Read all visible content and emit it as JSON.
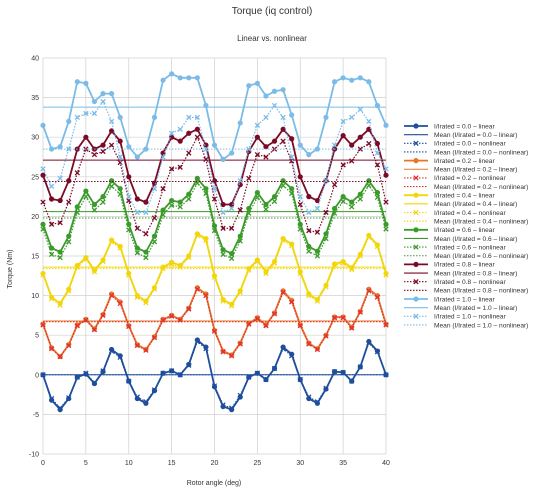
{
  "chart_data": {
    "type": "line",
    "title": "Torque (iq control)",
    "subtitle": "Linear vs. nonlinear",
    "xlabel": "Rotor angle (deg)",
    "ylabel": "Torque (Nm)",
    "xlim": [
      0,
      40
    ],
    "ylim": [
      -10,
      40
    ],
    "xticks": [
      0,
      5,
      10,
      15,
      20,
      25,
      30,
      35,
      40
    ],
    "yticks": [
      -10,
      -5,
      0,
      5,
      10,
      15,
      20,
      25,
      30,
      35,
      40
    ],
    "grid": true,
    "legend_position": "right",
    "x": [
      0,
      1,
      2,
      3,
      4,
      5,
      6,
      7,
      8,
      9,
      10,
      11,
      12,
      13,
      14,
      15,
      16,
      17,
      18,
      19,
      20,
      21,
      22,
      23,
      24,
      25,
      26,
      27,
      28,
      29,
      30,
      31,
      32,
      33,
      34,
      35,
      36,
      37,
      38,
      39,
      40
    ],
    "series": [
      {
        "name": "I/Irated = 0.0 – linear",
        "color": "#1f4e9c",
        "style": "solid",
        "marker": "circle",
        "values": [
          0.0,
          -3.2,
          -4.4,
          -3.0,
          -0.3,
          0.1,
          -1.1,
          0.4,
          3.2,
          2.4,
          -0.8,
          -3.0,
          -3.6,
          -2.0,
          0.2,
          0.5,
          0.0,
          1.3,
          4.4,
          3.5,
          -1.5,
          -4.0,
          -4.4,
          -2.8,
          -0.3,
          0.2,
          -0.6,
          0.8,
          3.5,
          2.6,
          -0.6,
          -3.0,
          -3.6,
          -1.8,
          0.4,
          0.3,
          -0.8,
          1.0,
          4.2,
          3.0,
          0.0
        ]
      },
      {
        "name": "Mean (I/Irated = 0.0 – linear)",
        "color": "#1f4e9c",
        "style": "mean",
        "value": 0.0
      },
      {
        "name": "I/Irated = 0.0 – nonlinear",
        "color": "#1f4e9c",
        "style": "dotted",
        "marker": "x",
        "values": [
          0.0,
          -3.0,
          -4.2,
          -2.9,
          -0.3,
          0.2,
          -1.0,
          0.5,
          3.0,
          2.2,
          -0.8,
          -2.8,
          -3.4,
          -1.9,
          0.2,
          0.5,
          0.0,
          1.2,
          4.2,
          3.3,
          -1.4,
          -3.8,
          -4.2,
          -2.6,
          -0.3,
          0.2,
          -0.6,
          0.8,
          3.3,
          2.4,
          -0.6,
          -2.8,
          -3.4,
          -1.7,
          0.4,
          0.3,
          -0.8,
          1.0,
          4.0,
          2.9,
          0.0
        ]
      },
      {
        "name": "Mean (I/Irated = 0.0 – nonlinear)",
        "color": "#1f4e9c",
        "style": "mean-dotted",
        "value": 0.0
      },
      {
        "name": "I/Irated = 0.2 – linear",
        "color": "#e8752a",
        "style": "solid",
        "marker": "circle",
        "values": [
          6.4,
          3.4,
          2.3,
          3.8,
          6.3,
          7.0,
          5.8,
          7.6,
          10.2,
          9.2,
          6.2,
          3.8,
          3.2,
          4.8,
          7.0,
          7.5,
          7.0,
          8.4,
          11.0,
          10.2,
          5.6,
          3.0,
          2.5,
          4.0,
          6.5,
          7.2,
          6.3,
          7.8,
          10.6,
          9.4,
          6.3,
          4.0,
          3.3,
          5.0,
          7.3,
          7.3,
          6.0,
          8.0,
          10.8,
          10.0,
          6.4
        ]
      },
      {
        "name": "Mean (I/Irated = 0.2 – linear)",
        "color": "#e8752a",
        "style": "mean",
        "value": 6.8
      },
      {
        "name": "I/Irated = 0.2 – nonlinear",
        "color": "#e03030",
        "style": "dotted",
        "marker": "x",
        "values": [
          6.3,
          3.3,
          2.3,
          3.7,
          6.2,
          6.9,
          5.7,
          7.5,
          10.0,
          9.0,
          6.1,
          3.7,
          3.1,
          4.7,
          6.9,
          7.4,
          6.9,
          8.3,
          10.8,
          10.0,
          5.5,
          2.9,
          2.4,
          3.9,
          6.4,
          7.1,
          6.2,
          7.7,
          10.4,
          9.2,
          6.2,
          3.9,
          3.2,
          4.9,
          7.2,
          7.2,
          5.9,
          7.9,
          10.6,
          9.8,
          6.3
        ]
      },
      {
        "name": "Mean (I/Irated = 0.2 – nonlinear)",
        "color": "#e03030",
        "style": "mean-dotted",
        "value": 6.7
      },
      {
        "name": "I/Irated = 0.4 – linear",
        "color": "#f2d60c",
        "style": "solid",
        "marker": "circle",
        "values": [
          12.8,
          9.8,
          9.0,
          10.8,
          13.8,
          14.8,
          13.2,
          14.5,
          17.0,
          16.2,
          12.8,
          10.0,
          9.3,
          11.0,
          13.6,
          14.2,
          13.8,
          15.0,
          17.8,
          17.2,
          12.5,
          9.5,
          8.9,
          10.6,
          13.4,
          14.5,
          13.0,
          14.3,
          17.2,
          16.5,
          13.0,
          10.2,
          9.5,
          11.3,
          14.0,
          14.3,
          13.5,
          15.2,
          17.6,
          16.4,
          12.8
        ]
      },
      {
        "name": "Mean (I/Irated = 0.4 – linear)",
        "color": "#f2d60c",
        "style": "mean",
        "value": 13.6
      },
      {
        "name": "I/Irated = 0.4 – nonlinear",
        "color": "#f2d60c",
        "style": "dotted",
        "marker": "x",
        "values": [
          12.6,
          9.6,
          8.8,
          10.6,
          13.6,
          14.6,
          13.0,
          14.3,
          16.8,
          16.0,
          12.6,
          9.8,
          9.1,
          10.8,
          13.4,
          14.0,
          13.6,
          14.8,
          17.6,
          17.0,
          12.3,
          9.3,
          8.7,
          10.4,
          13.2,
          14.3,
          12.8,
          14.1,
          17.0,
          16.3,
          12.8,
          10.0,
          9.3,
          11.1,
          13.8,
          14.1,
          13.3,
          15.0,
          17.4,
          16.2,
          12.6
        ]
      },
      {
        "name": "Mean (I/Irated = 0.4 – nonlinear)",
        "color": "#f2d60c",
        "style": "mean-dotted",
        "value": 13.4
      },
      {
        "name": "I/Irated = 0.6 – linear",
        "color": "#3a9a2a",
        "style": "solid",
        "marker": "circle",
        "values": [
          19.0,
          16.0,
          15.5,
          17.5,
          21.2,
          23.2,
          21.5,
          22.5,
          24.5,
          23.5,
          19.0,
          16.0,
          15.5,
          17.5,
          20.8,
          22.0,
          21.8,
          22.8,
          24.8,
          23.5,
          18.8,
          15.8,
          15.3,
          17.5,
          21.0,
          23.0,
          21.5,
          22.5,
          24.5,
          23.5,
          19.0,
          16.2,
          15.6,
          17.8,
          21.0,
          22.5,
          21.8,
          22.8,
          24.5,
          23.0,
          19.0
        ]
      },
      {
        "name": "Mean (I/Irated = 0.6 – linear)",
        "color": "#3a9a2a",
        "style": "mean",
        "value": 20.6
      },
      {
        "name": "I/Irated = 0.6 – nonlinear",
        "color": "#3a9a2a",
        "style": "dotted",
        "marker": "x",
        "values": [
          18.4,
          15.2,
          14.8,
          16.8,
          20.5,
          22.5,
          20.8,
          21.8,
          23.8,
          22.8,
          18.3,
          15.4,
          14.8,
          16.8,
          20.2,
          21.4,
          21.2,
          22.2,
          24.2,
          22.9,
          18.2,
          15.2,
          14.7,
          16.9,
          20.4,
          22.4,
          20.9,
          21.9,
          23.9,
          22.9,
          18.4,
          15.6,
          15.0,
          17.2,
          20.4,
          21.9,
          21.2,
          22.2,
          23.9,
          22.4,
          18.4
        ]
      },
      {
        "name": "Mean (I/Irated = 0.6 – nonlinear)",
        "color": "#3a9a2a",
        "style": "mean-dotted",
        "value": 19.8
      },
      {
        "name": "I/Irated = 0.8 – linear",
        "color": "#7a0a26",
        "style": "solid",
        "marker": "circle",
        "values": [
          25.2,
          22.2,
          22.0,
          24.5,
          28.5,
          30.0,
          28.5,
          29.0,
          30.8,
          29.5,
          25.0,
          22.2,
          21.8,
          24.2,
          28.0,
          30.0,
          29.5,
          30.5,
          31.0,
          29.0,
          24.5,
          21.5,
          21.5,
          24.0,
          28.2,
          30.0,
          28.8,
          29.5,
          31.0,
          29.8,
          25.0,
          22.5,
          22.0,
          24.5,
          28.5,
          30.2,
          29.0,
          30.0,
          31.0,
          29.2,
          25.2
        ]
      },
      {
        "name": "Mean (I/Irated = 0.8 – linear)",
        "color": "#7a0a26",
        "style": "mean",
        "value": 27.1
      },
      {
        "name": "I/Irated = 0.8 – nonlinear",
        "color": "#7a0a26",
        "style": "dotted",
        "marker": "x",
        "values": [
          21.8,
          19.0,
          19.2,
          21.8,
          25.5,
          28.5,
          27.8,
          28.2,
          29.0,
          26.8,
          22.0,
          18.5,
          17.8,
          19.8,
          23.5,
          26.0,
          26.2,
          28.0,
          30.0,
          27.2,
          22.2,
          18.5,
          18.5,
          20.8,
          24.8,
          27.8,
          27.5,
          28.5,
          29.5,
          27.0,
          21.5,
          18.2,
          18.0,
          20.5,
          24.0,
          26.5,
          27.0,
          28.5,
          29.2,
          26.5,
          21.8
        ]
      },
      {
        "name": "Mean (I/Irated = 0.8 – nonlinear)",
        "color": "#7a0a26",
        "style": "mean-dotted",
        "value": 24.4
      },
      {
        "name": "I/Irated = 1.0 – linear",
        "color": "#7bbbe8",
        "style": "solid",
        "marker": "circle",
        "values": [
          31.5,
          28.5,
          28.8,
          32.0,
          37.0,
          36.8,
          34.5,
          35.5,
          35.5,
          32.5,
          28.8,
          27.5,
          28.5,
          32.5,
          37.2,
          38.0,
          37.5,
          37.5,
          37.5,
          34.0,
          29.0,
          27.2,
          28.0,
          31.8,
          36.5,
          36.8,
          35.2,
          35.8,
          36.0,
          32.8,
          29.0,
          27.8,
          28.5,
          32.5,
          37.0,
          37.5,
          37.2,
          37.5,
          37.0,
          34.0,
          31.5
        ]
      },
      {
        "name": "Mean (I/Irated = 1.0 – linear)",
        "color": "#7bbbe8",
        "style": "mean",
        "value": 33.8
      },
      {
        "name": "I/Irated = 1.0 – nonlinear",
        "color": "#7bbbe8",
        "style": "dotted",
        "marker": "x",
        "values": [
          26.0,
          23.8,
          24.8,
          28.5,
          32.5,
          33.0,
          33.0,
          34.5,
          32.0,
          27.5,
          22.5,
          20.5,
          20.5,
          23.5,
          27.5,
          30.5,
          31.0,
          32.5,
          32.5,
          28.5,
          23.5,
          20.5,
          21.0,
          24.5,
          28.5,
          31.5,
          32.5,
          34.0,
          32.5,
          27.5,
          22.5,
          20.5,
          21.0,
          24.5,
          29.0,
          32.0,
          32.5,
          33.5,
          32.0,
          28.0,
          26.0
        ]
      },
      {
        "name": "Mean (I/Irated = 1.0 – nonlinear)",
        "color": "#7bbbe8",
        "style": "mean-dotted",
        "value": 28.5
      }
    ]
  }
}
